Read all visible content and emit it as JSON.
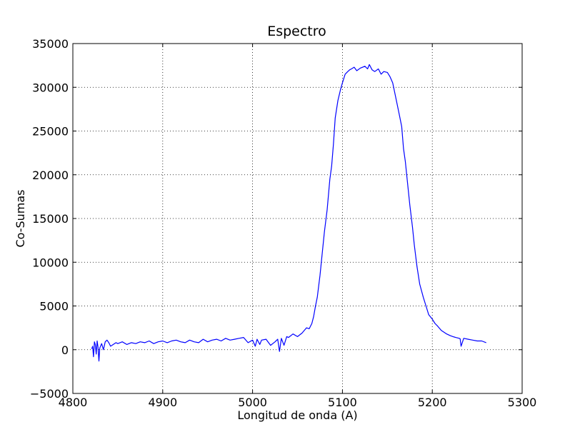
{
  "chart_data": {
    "type": "line",
    "title": "Espectro",
    "xlabel": "Longitud de onda (A)",
    "ylabel": "Co-Sumas",
    "xlim": [
      4800,
      5300
    ],
    "ylim": [
      -5000,
      35000
    ],
    "xticks": [
      4800,
      4900,
      5000,
      5100,
      5200,
      5300
    ],
    "yticks": [
      -5000,
      0,
      5000,
      10000,
      15000,
      20000,
      25000,
      30000,
      35000
    ],
    "grid": true,
    "line_color": "#0000ff",
    "series": [
      {
        "x": [
          4821,
          4822,
          4823,
          4824,
          4825,
          4826,
          4827,
          4828,
          4829,
          4830,
          4832,
          4834,
          4836,
          4838,
          4840,
          4842,
          4845,
          4848,
          4850,
          4855,
          4860,
          4865,
          4870,
          4875,
          4880,
          4885,
          4890,
          4895,
          4900,
          4905,
          4910,
          4915,
          4920,
          4925,
          4930,
          4935,
          4940,
          4945,
          4950,
          4955,
          4960,
          4965,
          4970,
          4975,
          4980,
          4985,
          4990,
          4995,
          5000,
          5003,
          5005,
          5008,
          5010,
          5015,
          5020,
          5025,
          5028,
          5030,
          5032,
          5035,
          5038,
          5040,
          5045,
          5050,
          5055,
          5060,
          5063,
          5066,
          5068,
          5070,
          5072,
          5075,
          5078,
          5080,
          5083,
          5086,
          5088,
          5090,
          5092,
          5095,
          5098,
          5100,
          5103,
          5106,
          5108,
          5110,
          5113,
          5116,
          5120,
          5125,
          5128,
          5130,
          5133,
          5136,
          5140,
          5143,
          5146,
          5150,
          5153,
          5156,
          5160,
          5163,
          5166,
          5168,
          5170,
          5172,
          5175,
          5178,
          5180,
          5183,
          5186,
          5190,
          5193,
          5196,
          5200,
          5203,
          5206,
          5210,
          5213,
          5216,
          5220,
          5223,
          5226,
          5228,
          5230,
          5231,
          5232,
          5235,
          5240,
          5245,
          5250,
          5255,
          5260
        ],
        "y": [
          100,
          400,
          -800,
          900,
          600,
          -500,
          1000,
          300,
          -1300,
          200,
          700,
          0,
          900,
          1100,
          800,
          400,
          600,
          800,
          700,
          900,
          600,
          800,
          700,
          900,
          800,
          1000,
          700,
          900,
          1000,
          800,
          1000,
          1100,
          900,
          800,
          1100,
          900,
          800,
          1200,
          900,
          1100,
          1200,
          1000,
          1300,
          1100,
          1200,
          1300,
          1400,
          800,
          1100,
          400,
          1200,
          600,
          1100,
          1200,
          500,
          900,
          1200,
          -200,
          1300,
          500,
          1500,
          1400,
          1800,
          1500,
          1900,
          2500,
          2400,
          3000,
          3800,
          5000,
          6000,
          8500,
          11500,
          13500,
          16000,
          19500,
          21000,
          23500,
          26500,
          28500,
          29800,
          30500,
          31500,
          31800,
          32000,
          32100,
          32300,
          31900,
          32200,
          32400,
          32100,
          32600,
          32000,
          31800,
          32100,
          31500,
          31800,
          31700,
          31200,
          30500,
          28500,
          27000,
          25500,
          23000,
          21500,
          19500,
          16500,
          14000,
          12000,
          9500,
          7500,
          6000,
          5000,
          4000,
          3500,
          3000,
          2700,
          2200,
          2000,
          1800,
          1600,
          1500,
          1400,
          1350,
          1300,
          1250,
          400,
          1300,
          1200,
          1100,
          1000,
          1000,
          800
        ]
      }
    ]
  }
}
